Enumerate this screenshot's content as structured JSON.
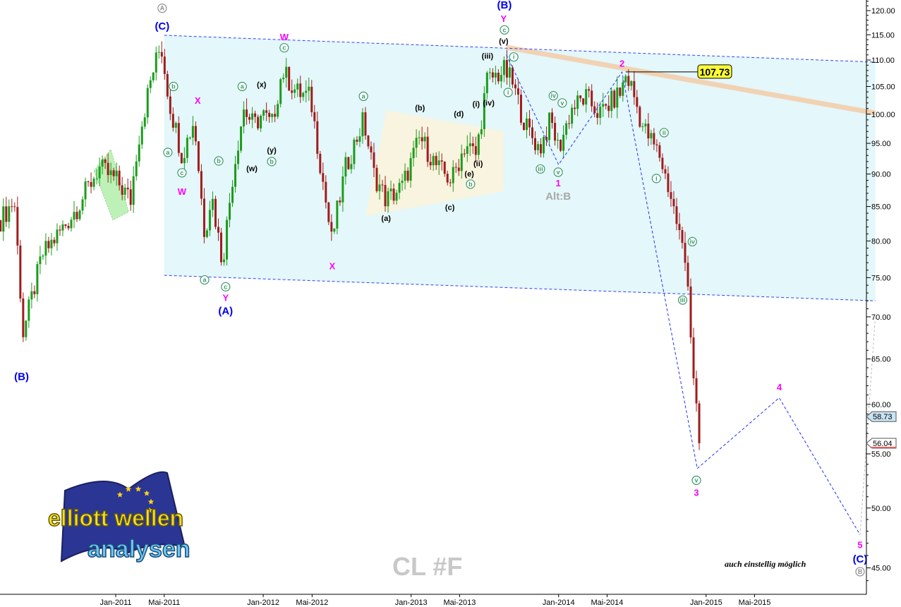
{
  "chart_data": {
    "type": "candlestick",
    "symbol": "CL #F",
    "note": "auch einstellig möglich",
    "y_scale": "log",
    "ylim": [
      43,
      122
    ],
    "y_ticks": [
      "120.00",
      "115.00",
      "110.00",
      "105.00",
      "100.00",
      "95.00",
      "90.00",
      "85.00",
      "80.00",
      "75.00",
      "70.00",
      "65.00",
      "60.00",
      "55.00",
      "50.00",
      "45.00"
    ],
    "x_ticks": [
      {
        "label": "Jan-2011",
        "date": "2011-01-01"
      },
      {
        "label": "Mai-2011",
        "date": "2011-05-01"
      },
      {
        "label": "Jan-2012",
        "date": "2012-01-01"
      },
      {
        "label": "Mai-2012",
        "date": "2012-05-01"
      },
      {
        "label": "Jan-2013",
        "date": "2013-01-01"
      },
      {
        "label": "Mai-2013",
        "date": "2013-05-01"
      },
      {
        "label": "Jan-2014",
        "date": "2014-01-01"
      },
      {
        "label": "Mai-2014",
        "date": "2014-05-01"
      },
      {
        "label": "Jan-2015",
        "date": "2015-01-01"
      },
      {
        "label": "Mai-2015",
        "date": "2015-05-01"
      }
    ],
    "bar_interval": "weekly",
    "price_path": [
      [
        "2010-03-22",
        83
      ],
      [
        "2010-04-25",
        86
      ],
      [
        "2010-05-17",
        68
      ],
      [
        "2010-07-03",
        78
      ],
      [
        "2010-08-25",
        82
      ],
      [
        "2010-09-29",
        85
      ],
      [
        "2010-11-20",
        91
      ],
      [
        "2011-01-03",
        89
      ],
      [
        "2011-02-07",
        86
      ],
      [
        "2011-02-24",
        95
      ],
      [
        "2011-03-31",
        107
      ],
      [
        "2011-04-23",
        113
      ],
      [
        "2011-05-14",
        102
      ],
      [
        "2011-06-14",
        93
      ],
      [
        "2011-07-14",
        99
      ],
      [
        "2011-08-09",
        81
      ],
      [
        "2011-08-26",
        87
      ],
      [
        "2011-09-22",
        77
      ],
      [
        "2011-10-18",
        90
      ],
      [
        "2011-11-13",
        101
      ],
      [
        "2011-12-09",
        98
      ],
      [
        "2011-12-30",
        100
      ],
      [
        "2012-01-22",
        98
      ],
      [
        "2012-02-17",
        108
      ],
      [
        "2012-03-23",
        104
      ],
      [
        "2012-04-27",
        103
      ],
      [
        "2012-05-23",
        91
      ],
      [
        "2012-06-18",
        80
      ],
      [
        "2012-07-23",
        91
      ],
      [
        "2012-09-05",
        99
      ],
      [
        "2012-10-01",
        90
      ],
      [
        "2012-10-31",
        86
      ],
      [
        "2012-12-10",
        88
      ],
      [
        "2013-01-23",
        96
      ],
      [
        "2013-03-07",
        91
      ],
      [
        "2013-04-11",
        89
      ],
      [
        "2013-05-16",
        95
      ],
      [
        "2013-06-11",
        93
      ],
      [
        "2013-07-07",
        106
      ],
      [
        "2013-08-20",
        108
      ],
      [
        "2013-09-07",
        106
      ],
      [
        "2013-10-11",
        98
      ],
      [
        "2013-11-15",
        94
      ],
      [
        "2013-12-12",
        99
      ],
      [
        "2014-01-01",
        94
      ],
      [
        "2014-02-02",
        101
      ],
      [
        "2014-03-09",
        103
      ],
      [
        "2014-04-13",
        100
      ],
      [
        "2014-06-04",
        104
      ],
      [
        "2014-06-16",
        107
      ],
      [
        "2014-06-30",
        105
      ],
      [
        "2014-07-27",
        98
      ],
      [
        "2014-09-08",
        93
      ],
      [
        "2014-10-04",
        87
      ],
      [
        "2014-10-31",
        80
      ],
      [
        "2014-11-17",
        75
      ],
      [
        "2014-11-26",
        66
      ],
      [
        "2014-12-15",
        56.04
      ]
    ],
    "price_tags": [
      {
        "value": "58.73",
        "price": 58.73,
        "color": "#c8e4f4"
      },
      {
        "value": "56.04",
        "price": 56.04,
        "color": "#ffffff",
        "line": "#e06060"
      }
    ],
    "highlight_value": {
      "text": "107.73",
      "date": "2014-06-16",
      "price": 107.73,
      "color": "#ffff33"
    },
    "channel": {
      "upper": [
        [
          "2011-05-01",
          114.9
        ],
        [
          "2016-02-24",
          109.6
        ]
      ],
      "lower": [
        [
          "2011-05-01",
          75.3
        ],
        [
          "2016-02-24",
          72.0
        ]
      ],
      "fill": "#d8f4f8",
      "line": "#3040ff"
    },
    "resistance_band": [
      [
        "2013-08-25",
        112.5
      ],
      [
        "2016-02-24",
        100.2
      ]
    ],
    "projection": [
      [
        "2014-12-10",
        53.6
      ],
      [
        "2015-07-01",
        60.7
      ],
      [
        "2016-01-17",
        47.7
      ]
    ],
    "projection_alt": [
      [
        "2016-01-17",
        47.7
      ],
      [
        "2016-02-24",
        70.2
      ]
    ],
    "wave_path": [
      [
        "2013-08-25",
        111
      ],
      [
        "2014-01-01",
        91.5
      ],
      [
        "2014-06-07",
        107.7
      ],
      [
        "2014-12-10",
        53.6
      ]
    ],
    "triangle": [
      [
        "2012-09-10",
        83.6
      ],
      [
        "2012-11-01",
        100.7
      ],
      [
        "2013-08-18",
        97.0
      ],
      [
        "2013-08-18",
        87.3
      ]
    ],
    "flag": [
      [
        "2010-11-08",
        90.5
      ],
      [
        "2010-12-20",
        94
      ],
      [
        "2011-02-02",
        84.2
      ],
      [
        "2010-12-25",
        83
      ]
    ],
    "annotations": [
      {
        "t": "A",
        "d": "2011-04-26",
        "p": 120.5,
        "s": "circgray"
      },
      {
        "t": "(C)",
        "d": "2011-04-26",
        "p": 116.8,
        "s": "blue"
      },
      {
        "t": "b",
        "d": "2011-05-24",
        "p": 105,
        "s": "circ"
      },
      {
        "t": "a",
        "d": "2011-05-10",
        "p": 93.5,
        "s": "circ"
      },
      {
        "t": "X",
        "d": "2011-07-23",
        "p": 102.5,
        "s": "magenta"
      },
      {
        "t": "c",
        "d": "2011-06-14",
        "p": 90.2,
        "s": "circ"
      },
      {
        "t": "W",
        "d": "2011-06-14",
        "p": 87.3,
        "s": "magenta"
      },
      {
        "t": "b",
        "d": "2011-09-13",
        "p": 92.1,
        "s": "circ"
      },
      {
        "t": "a",
        "d": "2011-08-09",
        "p": 74.7,
        "s": "circ"
      },
      {
        "t": "c",
        "d": "2011-09-30",
        "p": 73.8,
        "s": "circ"
      },
      {
        "t": "Y",
        "d": "2011-09-30",
        "p": 72.6,
        "s": "magenta"
      },
      {
        "t": "(A)",
        "d": "2011-09-30",
        "p": 71.2,
        "s": "blue"
      },
      {
        "t": "a",
        "d": "2011-11-10",
        "p": 105,
        "s": "circ"
      },
      {
        "t": "(x)",
        "d": "2011-12-28",
        "p": 105.5,
        "s": "black"
      },
      {
        "t": "(w)",
        "d": "2011-12-04",
        "p": 91,
        "s": "black"
      },
      {
        "t": "(y)",
        "d": "2012-01-22",
        "p": 94,
        "s": "black"
      },
      {
        "t": "b",
        "d": "2012-01-22",
        "p": 92,
        "s": "circ"
      },
      {
        "t": "W",
        "d": "2012-02-22",
        "p": 114.6,
        "s": "magenta"
      },
      {
        "t": "c",
        "d": "2012-02-22",
        "p": 112.4,
        "s": "circ"
      },
      {
        "t": "X",
        "d": "2012-06-20",
        "p": 76.6,
        "s": "magenta"
      },
      {
        "t": "a",
        "d": "2012-09-05",
        "p": 103.2,
        "s": "circ"
      },
      {
        "t": "(b)",
        "d": "2013-01-23",
        "p": 101.3,
        "s": "black"
      },
      {
        "t": "(d)",
        "d": "2013-04-29",
        "p": 100.2,
        "s": "black"
      },
      {
        "t": "(i)",
        "d": "2013-06-11",
        "p": 102,
        "s": "black"
      },
      {
        "t": "(iv)",
        "d": "2013-07-12",
        "p": 102.2,
        "s": "black"
      },
      {
        "t": "(e)",
        "d": "2013-05-25",
        "p": 90.2,
        "s": "black"
      },
      {
        "t": "(ii)",
        "d": "2013-06-16",
        "p": 91.8,
        "s": "black"
      },
      {
        "t": "b",
        "d": "2013-05-28",
        "p": 88.6,
        "s": "circ"
      },
      {
        "t": "(a)",
        "d": "2012-10-31",
        "p": 83.4,
        "s": "black"
      },
      {
        "t": "(c)",
        "d": "2013-04-07",
        "p": 85,
        "s": "black"
      },
      {
        "t": "(iii)",
        "d": "2013-07-09",
        "p": 111,
        "s": "black"
      },
      {
        "t": "(v)",
        "d": "2013-08-18",
        "p": 113.9,
        "s": "black"
      },
      {
        "t": "c",
        "d": "2013-08-20",
        "p": 116,
        "s": "circ"
      },
      {
        "t": "Y",
        "d": "2013-08-18",
        "p": 118.4,
        "s": "magenta"
      },
      {
        "t": "(B)",
        "d": "2013-08-20",
        "p": 121,
        "s": "blue"
      },
      {
        "t": "i",
        "d": "2013-09-12",
        "p": 110.6,
        "s": "circ"
      },
      {
        "t": "i",
        "d": "2013-08-29",
        "p": 103.9,
        "s": "circ"
      },
      {
        "t": "iii",
        "d": "2013-11-17",
        "p": 90.8,
        "s": "circ"
      },
      {
        "t": "v",
        "d": "2013-12-31",
        "p": 90.3,
        "s": "circ"
      },
      {
        "t": "iv",
        "d": "2013-12-19",
        "p": 103.3,
        "s": "circ"
      },
      {
        "t": "v",
        "d": "2014-01-10",
        "p": 102,
        "s": "circ"
      },
      {
        "t": "1",
        "d": "2013-12-31",
        "p": 88.8,
        "s": "magenta"
      },
      {
        "t": "Alt:B",
        "d": "2013-12-31",
        "p": 87.3,
        "s": "gray"
      },
      {
        "t": "2",
        "d": "2014-06-07",
        "p": 109.4,
        "s": "magenta"
      },
      {
        "t": "ii",
        "d": "2014-09-19",
        "p": 96.8,
        "s": "circ"
      },
      {
        "t": "i",
        "d": "2014-08-31",
        "p": 89.3,
        "s": "circ"
      },
      {
        "t": "iv",
        "d": "2014-11-28",
        "p": 79.9,
        "s": "circ"
      },
      {
        "t": "iii",
        "d": "2014-11-04",
        "p": 72.1,
        "s": "circ"
      },
      {
        "t": "v",
        "d": "2014-12-08",
        "p": 52.5,
        "s": "circ"
      },
      {
        "t": "3",
        "d": "2014-12-08",
        "p": 51.4,
        "s": "magenta"
      },
      {
        "t": "4",
        "d": "2015-07-01",
        "p": 61.9,
        "s": "magenta"
      },
      {
        "t": "5",
        "d": "2016-01-17",
        "p": 46.9,
        "s": "magenta"
      },
      {
        "t": "(C)",
        "d": "2016-01-17",
        "p": 45.7,
        "s": "blue"
      },
      {
        "t": "B",
        "d": "2016-01-17",
        "p": 44.7,
        "s": "circgray"
      },
      {
        "t": "(B)",
        "d": "2010-05-13",
        "p": 63.0,
        "s": "blue"
      }
    ],
    "colors": {
      "up": "#1c9c1c",
      "down": "#a01c1c"
    }
  },
  "logo": {
    "line1": "elliott wellen",
    "line2": "analysen"
  }
}
